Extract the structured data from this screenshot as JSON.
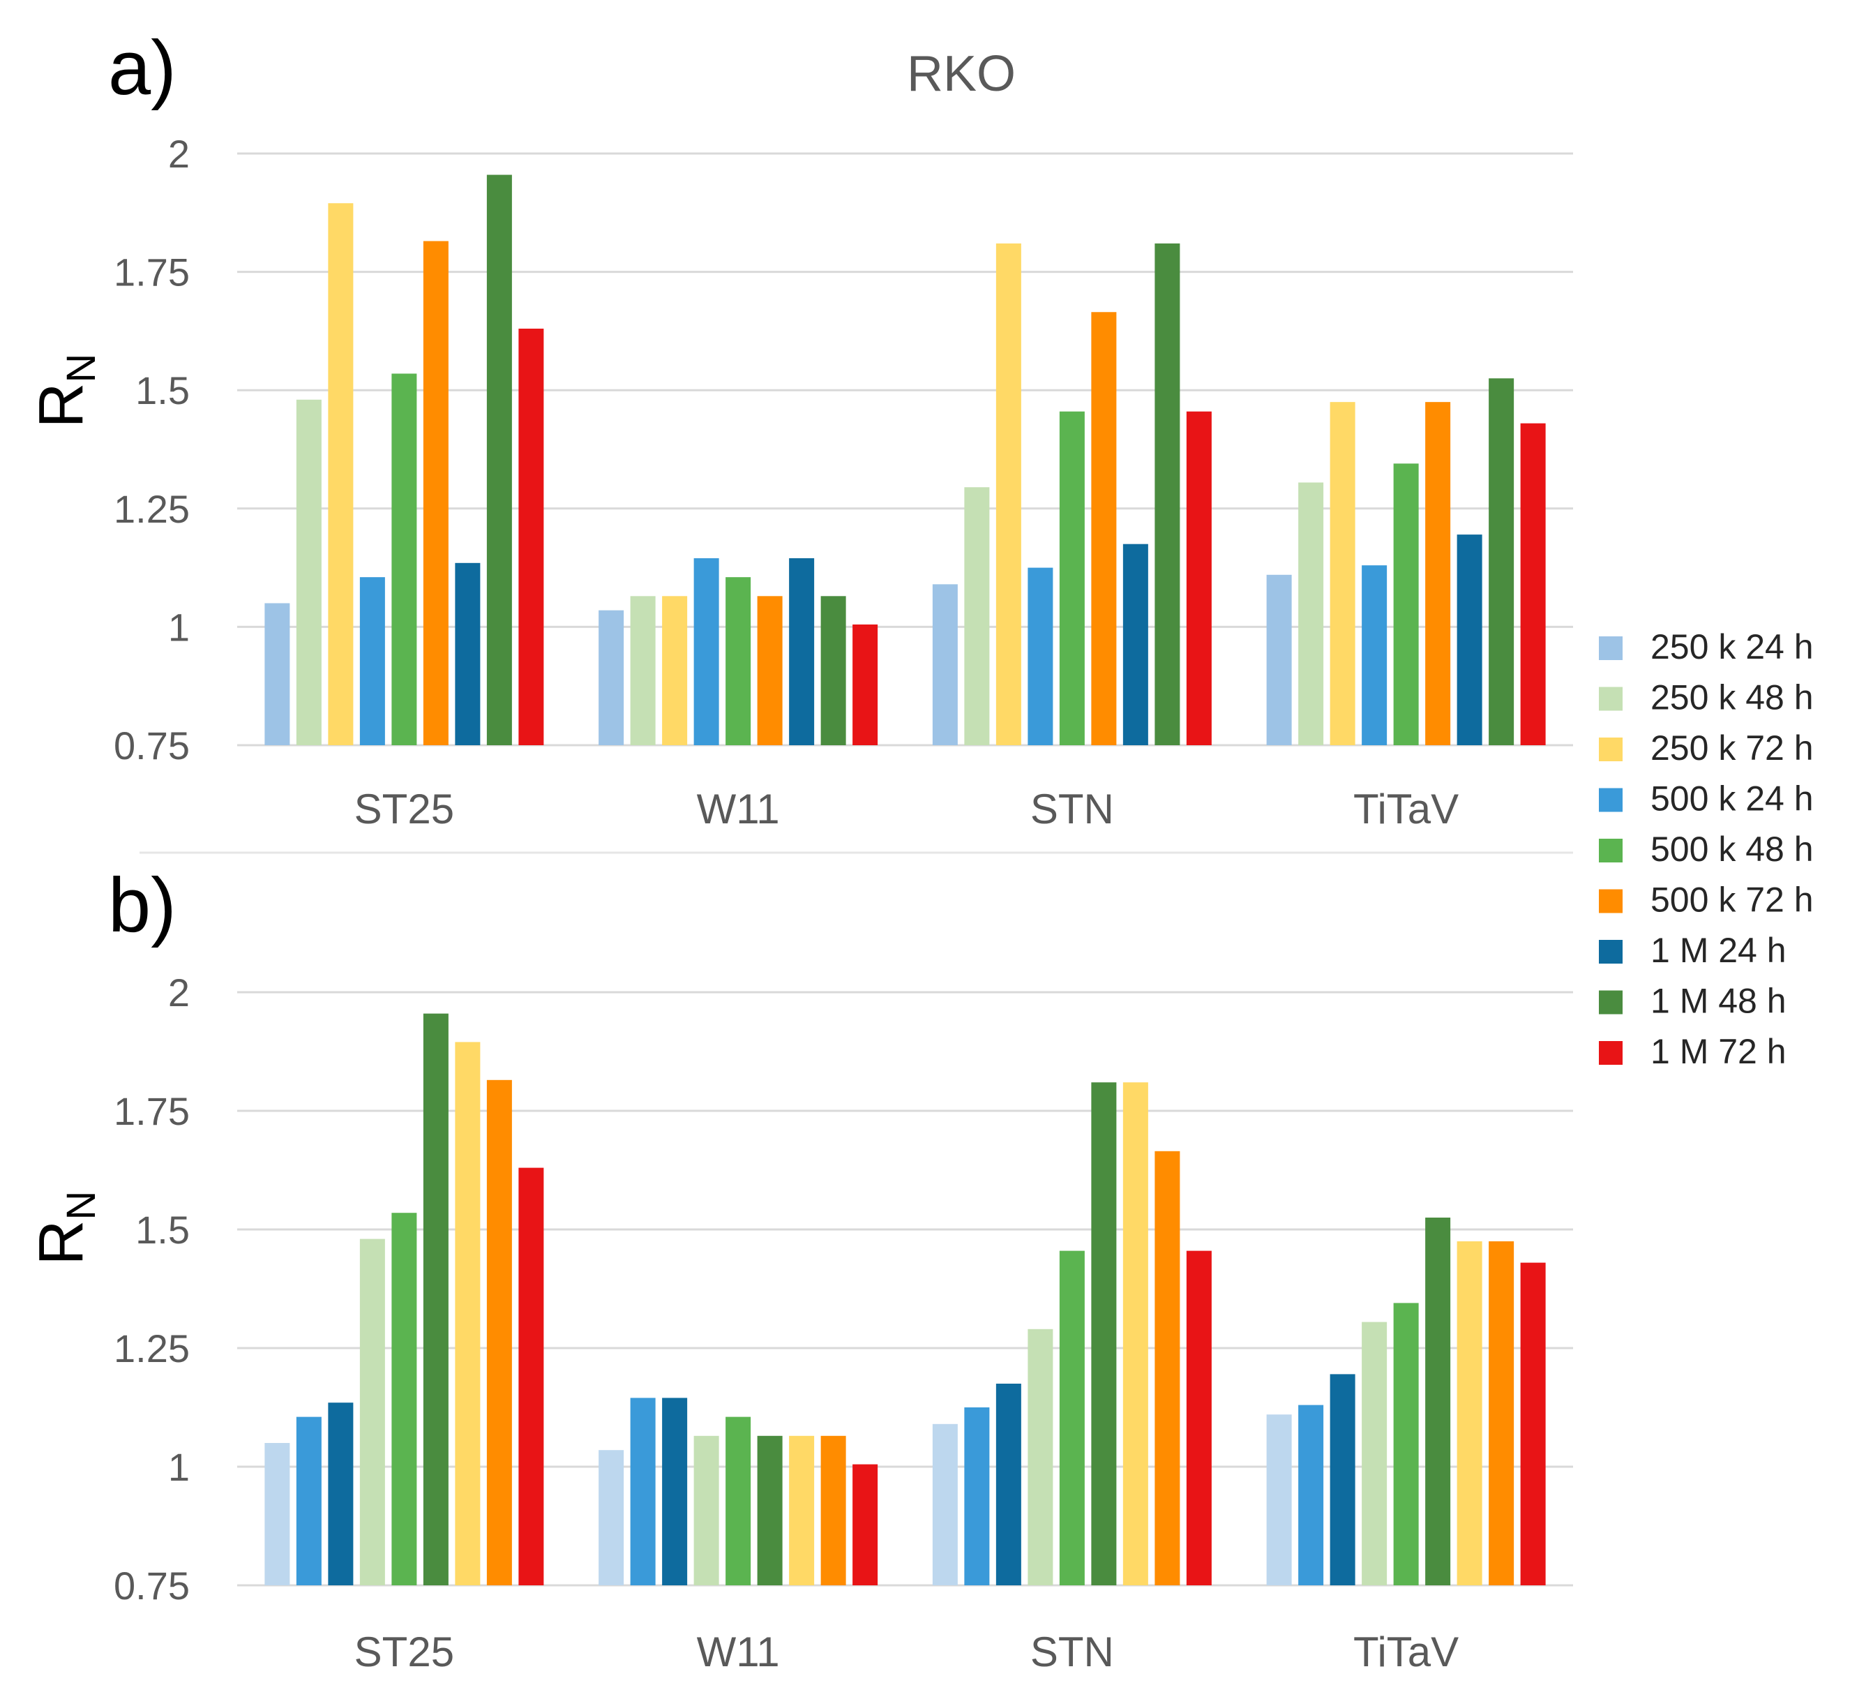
{
  "chart_data": [
    {
      "panel": "a)",
      "type": "bar",
      "title": "RKO",
      "ylabel": "R",
      "ylabel_sub": "N",
      "ylim": [
        0.75,
        2
      ],
      "yticks": [
        "0.75",
        "1",
        "1.25",
        "1.5",
        "1.75",
        "2"
      ],
      "grid": true,
      "categories": [
        "ST25",
        "W11",
        "STN",
        "TiTaV"
      ],
      "series": [
        {
          "name": "250 k 24 h",
          "color": "#9dc3e6",
          "values": [
            1.05,
            1.035,
            1.09,
            1.11
          ]
        },
        {
          "name": "250 k 48 h",
          "color": "#c5e0b4",
          "values": [
            1.48,
            1.065,
            1.295,
            1.305
          ]
        },
        {
          "name": "250 k 72 h",
          "color": "#ffd966",
          "values": [
            1.895,
            1.065,
            1.81,
            1.475
          ]
        },
        {
          "name": "500 k 24 h",
          "color": "#3a9ad9",
          "values": [
            1.105,
            1.145,
            1.125,
            1.13
          ]
        },
        {
          "name": "500 k 48 h",
          "color": "#5bb450",
          "values": [
            1.535,
            1.105,
            1.455,
            1.345
          ]
        },
        {
          "name": "500 k 72 h",
          "color": "#ff8c00",
          "values": [
            1.815,
            1.065,
            1.665,
            1.475
          ]
        },
        {
          "name": "1 M 24 h",
          "color": "#0e6b9e",
          "values": [
            1.135,
            1.145,
            1.175,
            1.195
          ]
        },
        {
          "name": "1 M 48 h",
          "color": "#4a8c3f",
          "values": [
            1.955,
            1.065,
            1.81,
            1.525
          ]
        },
        {
          "name": "1 M 72 h",
          "color": "#e81416",
          "values": [
            1.63,
            1.005,
            1.455,
            1.43
          ]
        }
      ]
    },
    {
      "panel": "b)",
      "type": "bar",
      "title": "",
      "ylabel": "R",
      "ylabel_sub": "N",
      "ylim": [
        0.75,
        2
      ],
      "yticks": [
        "0.75",
        "1",
        "1.25",
        "1.5",
        "1.75",
        "2"
      ],
      "grid": true,
      "categories": [
        "ST25",
        "W11",
        "STN",
        "TiTaV"
      ],
      "series": [
        {
          "name": "250 k 24 h",
          "color": "#bdd7ee",
          "values": [
            1.05,
            1.035,
            1.09,
            1.11
          ]
        },
        {
          "name": "500 k 24 h",
          "color": "#3a9ad9",
          "values": [
            1.105,
            1.145,
            1.125,
            1.13
          ]
        },
        {
          "name": "1 M 24 h",
          "color": "#0e6b9e",
          "values": [
            1.135,
            1.145,
            1.175,
            1.195
          ]
        },
        {
          "name": "250 k 48 h",
          "color": "#c5e0b4",
          "values": [
            1.48,
            1.065,
            1.29,
            1.305
          ]
        },
        {
          "name": "500 k 48 h",
          "color": "#5bb450",
          "values": [
            1.535,
            1.105,
            1.455,
            1.345
          ]
        },
        {
          "name": "1 M 48 h",
          "color": "#4a8c3f",
          "values": [
            1.955,
            1.065,
            1.81,
            1.525
          ]
        },
        {
          "name": "250 k 72 h",
          "color": "#ffd966",
          "values": [
            1.895,
            1.065,
            1.81,
            1.475
          ]
        },
        {
          "name": "500 k 72 h",
          "color": "#ff8c00",
          "values": [
            1.815,
            1.065,
            1.665,
            1.475
          ]
        },
        {
          "name": "1 M 72 h",
          "color": "#e81416",
          "values": [
            1.63,
            1.005,
            1.455,
            1.43
          ]
        }
      ]
    }
  ],
  "legend": {
    "placement": "right",
    "items": [
      {
        "label": "250 k 24 h",
        "color": "#9dc3e6"
      },
      {
        "label": "250 k 48 h",
        "color": "#c5e0b4"
      },
      {
        "label": "250 k 72 h",
        "color": "#ffd966"
      },
      {
        "label": "500 k 24 h",
        "color": "#3a9ad9"
      },
      {
        "label": "500 k 48 h",
        "color": "#5bb450"
      },
      {
        "label": "500 k 72 h",
        "color": "#ff8c00"
      },
      {
        "label": "1 M 24 h",
        "color": "#0e6b9e"
      },
      {
        "label": "1 M 48 h",
        "color": "#4a8c3f"
      },
      {
        "label": "1 M 72 h",
        "color": "#e81416"
      }
    ]
  }
}
